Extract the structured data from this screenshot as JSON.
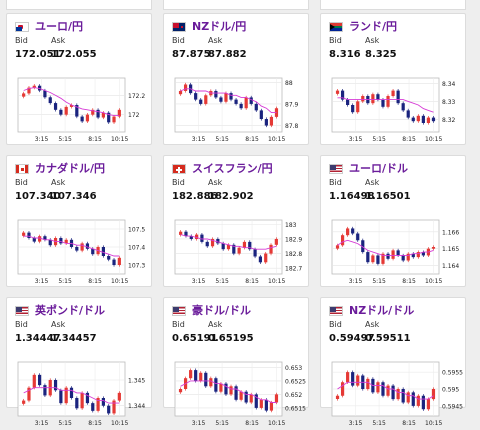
{
  "labels": {
    "bid": "Bid",
    "ask": "Ask"
  },
  "x_ticks": [
    "3:15",
    "5:15",
    "8:15",
    "10:15"
  ],
  "cards": [
    {
      "pair": "ユーロ/円",
      "flag": "eu-flag",
      "bid": "172.051",
      "ask": "172.055",
      "y_ticks": [
        "172.2",
        "172"
      ],
      "y_range": [
        171.82,
        172.38
      ],
      "chart_data": {
        "type": "candlestick",
        "series": [
          {
            "values": [
              172.22,
              172.28,
              172.3,
              172.25,
              172.18,
              172.12,
              172.05,
              172.0,
              172.08,
              172.1,
              171.98,
              171.93,
              172.0,
              172.05,
              171.97,
              172.02,
              171.92,
              171.98,
              172.05
            ]
          },
          {
            "values": [
              172.25,
              172.27,
              172.28,
              172.27,
              172.25,
              172.23,
              172.2,
              172.17,
              172.13,
              172.1,
              172.08,
              172.06,
              172.05,
              172.04,
              172.03,
              172.02,
              172.0,
              171.99,
              171.99
            ]
          }
        ]
      }
    },
    {
      "pair": "NZドル/円",
      "flag": "nz-flag",
      "bid": "87.875",
      "ask": "87.882",
      "y_ticks": [
        "88",
        "87.9",
        "87.8"
      ],
      "y_range": [
        87.77,
        88.02
      ],
      "chart_data": {
        "type": "candlestick",
        "series": [
          {
            "values": [
              87.96,
              87.99,
              87.95,
              87.92,
              87.9,
              87.94,
              87.96,
              87.93,
              87.91,
              87.95,
              87.92,
              87.9,
              87.88,
              87.93,
              87.9,
              87.87,
              87.83,
              87.8,
              87.84,
              87.88
            ]
          },
          {
            "values": [
              87.96,
              87.97,
              87.97,
              87.96,
              87.96,
              87.96,
              87.95,
              87.95,
              87.95,
              87.95,
              87.94,
              87.94,
              87.93,
              87.93,
              87.92,
              87.91,
              87.89,
              87.88,
              87.86,
              87.86
            ]
          }
        ]
      }
    },
    {
      "pair": "ランド/円",
      "flag": "za-flag",
      "bid": "8.316",
      "ask": "8.325",
      "y_ticks": [
        "8.34",
        "8.33",
        "8.32"
      ],
      "y_range": [
        8.313,
        8.343
      ],
      "chart_data": {
        "type": "candlestick",
        "series": [
          {
            "values": [
              8.336,
              8.331,
              8.328,
              8.324,
              8.33,
              8.333,
              8.329,
              8.334,
              8.331,
              8.327,
              8.333,
              8.336,
              8.329,
              8.325,
              8.321,
              8.319,
              8.322,
              8.318,
              8.321,
              8.319
            ]
          },
          {
            "values": [
              8.332,
              8.332,
              8.331,
              8.331,
              8.331,
              8.331,
              8.331,
              8.331,
              8.331,
              8.331,
              8.331,
              8.331,
              8.331,
              8.331,
              8.33,
              8.329,
              8.328,
              8.326,
              8.325,
              8.324
            ]
          }
        ]
      }
    },
    {
      "pair": "カナダドル/円",
      "flag": "ca-flag",
      "bid": "107.340",
      "ask": "107.346",
      "y_ticks": [
        "107.5",
        "107.4",
        "107.3"
      ],
      "y_range": [
        107.25,
        107.55
      ],
      "chart_data": {
        "type": "candlestick",
        "series": [
          {
            "values": [
              107.48,
              107.45,
              107.43,
              107.46,
              107.44,
              107.41,
              107.45,
              107.42,
              107.44,
              107.4,
              107.38,
              107.42,
              107.39,
              107.36,
              107.4,
              107.35,
              107.33,
              107.3,
              107.34
            ]
          },
          {
            "values": [
              107.46,
              107.46,
              107.45,
              107.45,
              107.44,
              107.44,
              107.43,
              107.43,
              107.42,
              107.42,
              107.41,
              107.41,
              107.4,
              107.39,
              107.38,
              107.37,
              107.36,
              107.35,
              107.35
            ]
          }
        ]
      }
    },
    {
      "pair": "スイスフラン/円",
      "flag": "ch-flag",
      "bid": "182.886",
      "ask": "182.902",
      "y_ticks": [
        "183",
        "182.9",
        "182.8",
        "182.7"
      ],
      "y_range": [
        182.66,
        183.03
      ],
      "chart_data": {
        "type": "candlestick",
        "series": [
          {
            "values": [
              182.95,
              182.92,
              182.9,
              182.93,
              182.88,
              182.85,
              182.9,
              182.87,
              182.83,
              182.86,
              182.8,
              182.84,
              182.88,
              182.83,
              182.78,
              182.74,
              182.8,
              182.86,
              182.9
            ]
          },
          {
            "values": [
              182.93,
              182.92,
              182.92,
              182.91,
              182.9,
              182.9,
              182.89,
              182.88,
              182.87,
              182.86,
              182.85,
              182.85,
              182.84,
              182.84,
              182.83,
              182.83,
              182.83,
              182.84,
              182.85
            ]
          }
        ]
      }
    },
    {
      "pair": "ユーロ/ドル",
      "flag": "us-eu-flag",
      "bid": "1.16498",
      "ask": "1.16501",
      "y_ticks": [
        "1.166",
        "1.165",
        "1.164"
      ],
      "y_range": [
        1.1635,
        1.1667
      ],
      "chart_data": {
        "type": "candlestick",
        "series": [
          {
            "values": [
              1.1652,
              1.1658,
              1.1662,
              1.1659,
              1.1655,
              1.1648,
              1.1642,
              1.1646,
              1.1641,
              1.1647,
              1.1644,
              1.1649,
              1.1646,
              1.1643,
              1.1647,
              1.1645,
              1.1648,
              1.1646,
              1.165,
              1.1651
            ]
          },
          {
            "values": [
              1.1652,
              1.1654,
              1.1655,
              1.1654,
              1.1653,
              1.1651,
              1.1649,
              1.1648,
              1.1647,
              1.1646,
              1.1646,
              1.1646,
              1.1646,
              1.1646,
              1.1646,
              1.1647,
              1.1647,
              1.1648,
              1.1648,
              1.1649
            ]
          }
        ]
      }
    },
    {
      "pair": "英ポンド/ドル",
      "flag": "us-gb-flag",
      "bid": "1.34447",
      "ask": "1.34457",
      "y_ticks": [
        "1.345",
        "1.344"
      ],
      "y_range": [
        1.3436,
        1.3457
      ],
      "chart_data": {
        "type": "candlestick",
        "series": [
          {
            "values": [
              1.3442,
              1.3447,
              1.3452,
              1.3448,
              1.3444,
              1.345,
              1.3446,
              1.3441,
              1.3447,
              1.3443,
              1.3439,
              1.3445,
              1.3441,
              1.3438,
              1.3443,
              1.344,
              1.3437,
              1.3442,
              1.3445
            ]
          },
          {
            "values": [
              1.3445,
              1.3446,
              1.3447,
              1.3447,
              1.3447,
              1.3447,
              1.3447,
              1.3446,
              1.3446,
              1.3446,
              1.3445,
              1.3445,
              1.3444,
              1.3443,
              1.3442,
              1.3442,
              1.3441,
              1.3441,
              1.3441
            ]
          }
        ]
      }
    },
    {
      "pair": "豪ドル/ドル",
      "flag": "us-au-flag",
      "bid": "0.65191",
      "ask": "0.65195",
      "y_ticks": [
        "0.653",
        "0.6525",
        "0.652",
        "0.6515"
      ],
      "y_range": [
        0.6512,
        0.6532
      ],
      "chart_data": {
        "type": "candlestick",
        "series": [
          {
            "values": [
              0.6522,
              0.6526,
              0.6529,
              0.6525,
              0.6528,
              0.6523,
              0.6526,
              0.6521,
              0.6524,
              0.652,
              0.6523,
              0.6518,
              0.6521,
              0.6517,
              0.652,
              0.6515,
              0.6518,
              0.6514,
              0.6517,
              0.652
            ]
          },
          {
            "values": [
              0.6523,
              0.6524,
              0.6525,
              0.6525,
              0.6525,
              0.6525,
              0.6525,
              0.6524,
              0.6524,
              0.6523,
              0.6522,
              0.6522,
              0.6521,
              0.652,
              0.652,
              0.6519,
              0.6518,
              0.6518,
              0.6517,
              0.6517
            ]
          }
        ]
      }
    },
    {
      "pair": "NZドル/ドル",
      "flag": "us-nz-flag",
      "bid": "0.59497",
      "ask": "0.59511",
      "y_ticks": [
        "0.5955",
        "0.595",
        "0.5945"
      ],
      "y_range": [
        0.5942,
        0.5958
      ],
      "chart_data": {
        "type": "candlestick",
        "series": [
          {
            "values": [
              0.5948,
              0.5952,
              0.5955,
              0.5951,
              0.5954,
              0.595,
              0.5953,
              0.5949,
              0.5952,
              0.5948,
              0.5951,
              0.5947,
              0.595,
              0.5946,
              0.5949,
              0.5945,
              0.5948,
              0.5944,
              0.5947,
              0.595
            ]
          },
          {
            "values": [
              0.595,
              0.5951,
              0.5952,
              0.5952,
              0.5952,
              0.5952,
              0.5952,
              0.5951,
              0.5951,
              0.5951,
              0.595,
              0.595,
              0.5949,
              0.5949,
              0.5948,
              0.5948,
              0.5947,
              0.5947,
              0.5947,
              0.5948
            ]
          }
        ]
      }
    }
  ]
}
